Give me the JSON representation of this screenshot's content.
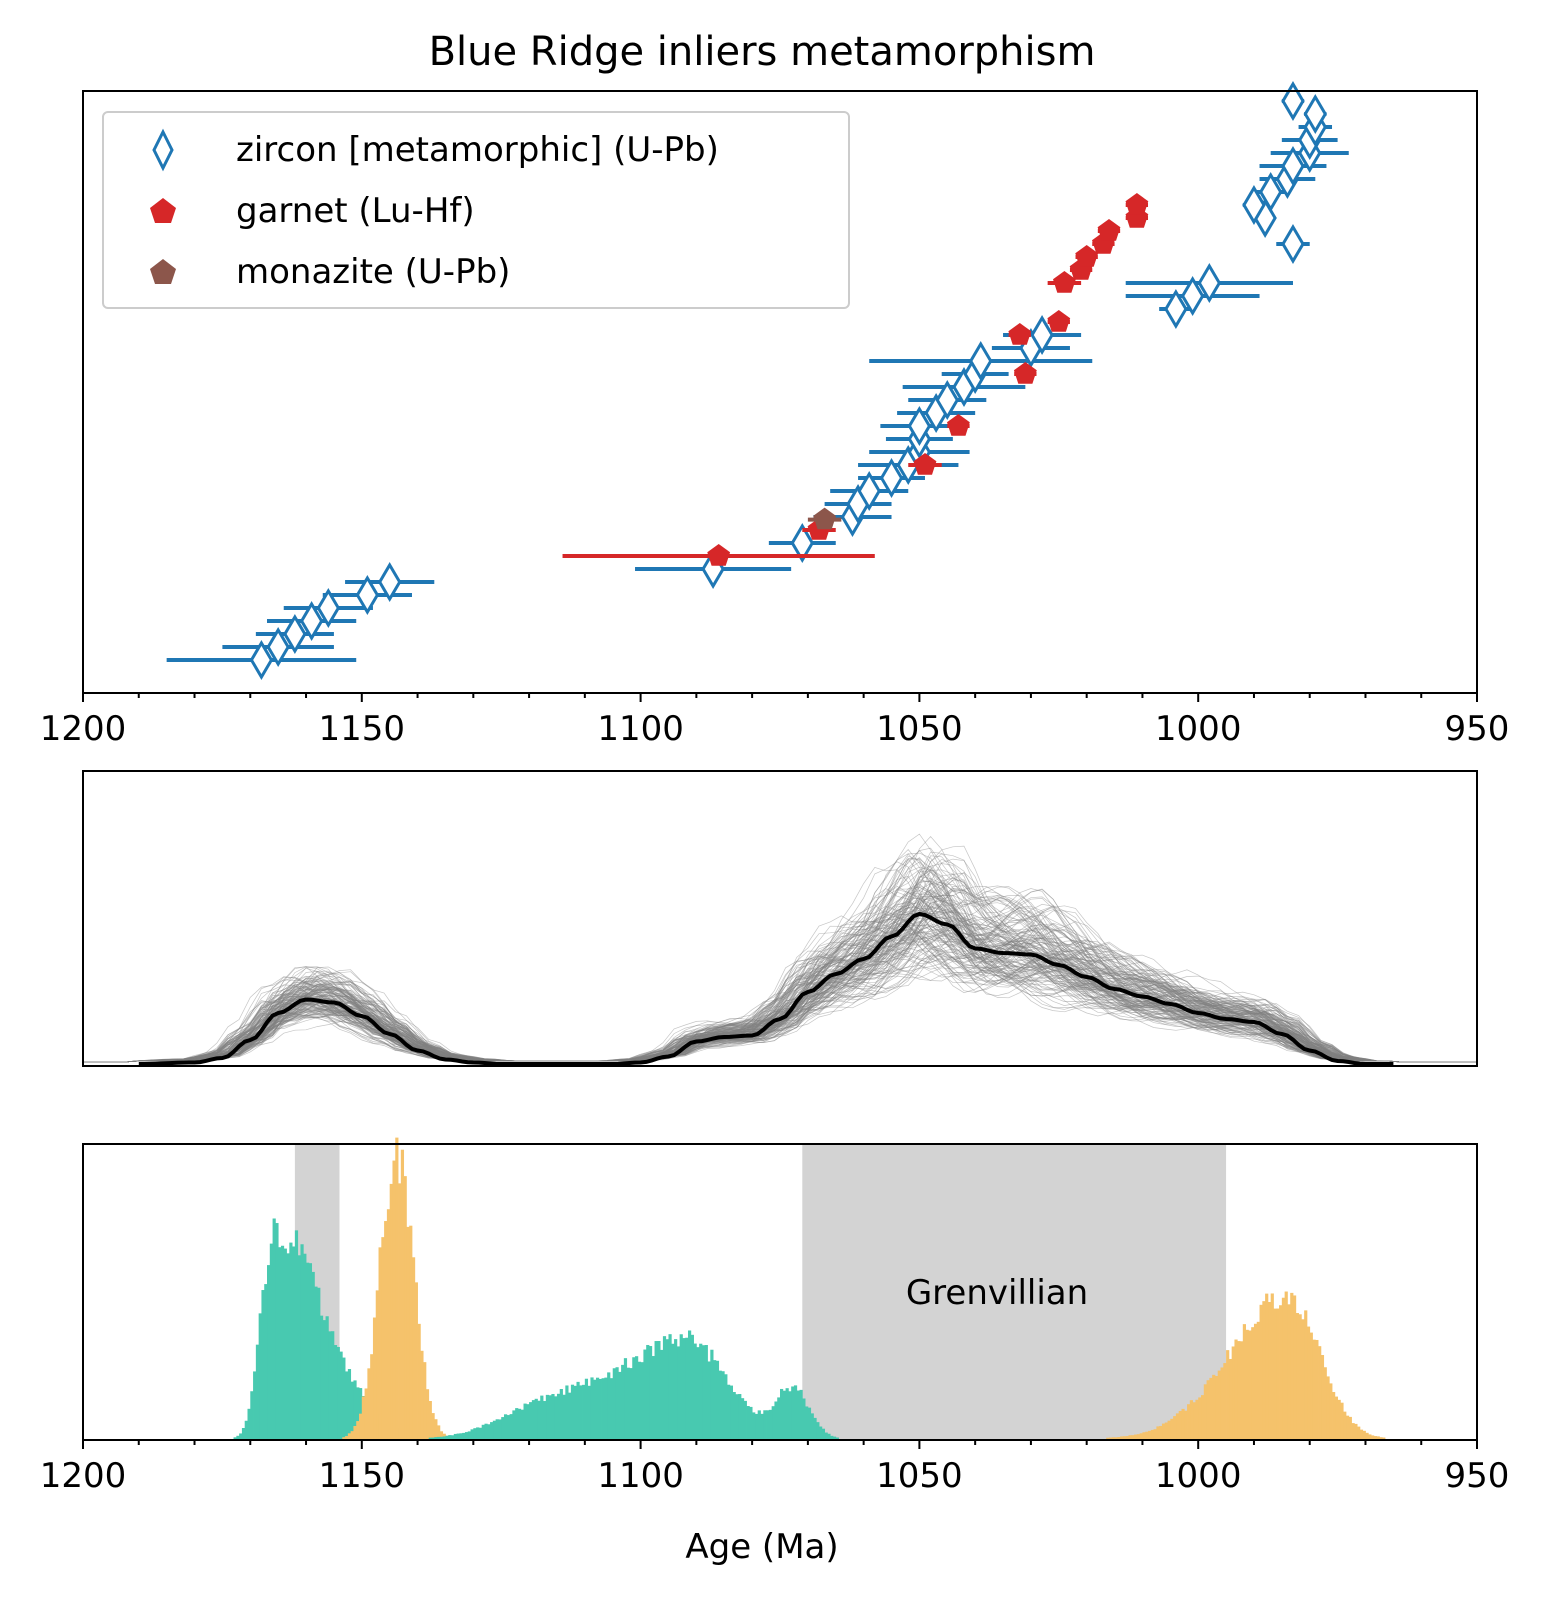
{
  "chart_data": [
    {
      "type": "scatter",
      "title": "Blue Ridge inliers metamorphism",
      "xlim": [
        1200,
        950
      ],
      "xticks": [
        1200,
        1150,
        1100,
        1050,
        1000,
        950
      ],
      "xlabel": "",
      "ylabel": "",
      "legend": {
        "placement": "top-left",
        "entries": [
          {
            "label": "zircon [metamorphic] (U-Pb)",
            "marker": "diamond-open",
            "color": "#1f77b4"
          },
          {
            "label": "garnet (Lu-Hf)",
            "marker": "pentagon",
            "color": "#d62728"
          },
          {
            "label": "monazite (U-Pb)",
            "marker": "pentagon",
            "color": "#8c564b"
          }
        ]
      },
      "series": [
        {
          "name": "zircon [metamorphic] (U-Pb)",
          "color": "#1f77b4",
          "rank": [
            1,
            2,
            3,
            4,
            5,
            6,
            7,
            8,
            10,
            12,
            13,
            14,
            15,
            16,
            17,
            18,
            19,
            20,
            21,
            22,
            23,
            24,
            25,
            26,
            28,
            29,
            30,
            33,
            35,
            36,
            37,
            38,
            39,
            40,
            41,
            42,
            43,
            44
          ],
          "age": [
            1168,
            1165,
            1162,
            1159,
            1156,
            1149,
            1145,
            1087,
            1071,
            1062,
            1061,
            1059,
            1055,
            1052,
            1050,
            1050,
            1050,
            1047,
            1045,
            1042,
            1040,
            1039,
            1030,
            1028,
            1004,
            1001,
            998,
            983,
            988,
            990,
            987,
            984,
            983,
            980,
            980,
            979,
            979,
            983
          ],
          "err": [
            17,
            10,
            7,
            8,
            8,
            8,
            8,
            14,
            6,
            7,
            6,
            7,
            6,
            9,
            9,
            6,
            7,
            7,
            7,
            11,
            6,
            20,
            7,
            7,
            3,
            12,
            15,
            3,
            1,
            2,
            3,
            5,
            6,
            7,
            5,
            3,
            2,
            2
          ]
        },
        {
          "name": "garnet (Lu-Hf)",
          "color": "#d62728",
          "rank": [
            9,
            11,
            16,
            19,
            23,
            26,
            27,
            30,
            31,
            32,
            33,
            34,
            35,
            36
          ],
          "age": [
            1086,
            1068,
            1049,
            1043,
            1031,
            1032,
            1025,
            1024,
            1021,
            1020,
            1017,
            1016,
            1011,
            1011
          ],
          "err": [
            28,
            3,
            3,
            2,
            2,
            2,
            2,
            3,
            2,
            2,
            2,
            2,
            2,
            2
          ]
        },
        {
          "name": "monazite (U-Pb)",
          "color": "#8c564b",
          "rank": [
            11.8
          ],
          "age": [
            1067
          ],
          "err": [
            3
          ]
        }
      ]
    },
    {
      "type": "line",
      "xlim": [
        1200,
        950
      ],
      "description_series": "mean probability density with resampled bootstrap curves",
      "mean_curve": {
        "x": [
          1190,
          1180,
          1175,
          1170,
          1165,
          1160,
          1155,
          1150,
          1145,
          1140,
          1135,
          1130,
          1125,
          1120,
          1115,
          1110,
          1105,
          1100,
          1095,
          1090,
          1085,
          1080,
          1075,
          1070,
          1065,
          1060,
          1055,
          1050,
          1045,
          1040,
          1035,
          1030,
          1025,
          1020,
          1015,
          1010,
          1005,
          1000,
          995,
          990,
          985,
          980,
          975,
          970,
          965
        ],
        "y": [
          0.0,
          0.01,
          0.04,
          0.16,
          0.34,
          0.43,
          0.41,
          0.32,
          0.2,
          0.09,
          0.03,
          0.01,
          0.0,
          0.0,
          0.0,
          0.0,
          0.0,
          0.01,
          0.05,
          0.15,
          0.18,
          0.19,
          0.3,
          0.48,
          0.6,
          0.7,
          0.85,
          1.0,
          0.93,
          0.77,
          0.74,
          0.73,
          0.66,
          0.58,
          0.5,
          0.45,
          0.4,
          0.34,
          0.3,
          0.28,
          0.2,
          0.09,
          0.02,
          0.0,
          0.0
        ]
      }
    },
    {
      "type": "bar",
      "xlabel": "Age (Ma)",
      "xlim": [
        1200,
        950
      ],
      "xticks": [
        1200,
        1150,
        1100,
        1050,
        1000,
        950
      ],
      "shaded_intervals": [
        {
          "from": 1162,
          "to": 1154,
          "label": ""
        },
        {
          "from": 1071,
          "to": 995,
          "label": "Grenvillian"
        }
      ],
      "histograms": [
        {
          "name": "peak1",
          "color": "#48c9b0",
          "mean": 1166,
          "sd": 5,
          "height": 0.71,
          "skew": "left"
        },
        {
          "name": "peak2",
          "color": "#f5c26b",
          "mean": 1144,
          "sd": 3,
          "height": 0.96,
          "skew": "none"
        },
        {
          "name": "peak3",
          "color": "#48c9b0",
          "mean": 1092,
          "sd": 9,
          "height": 0.33,
          "skew": "right"
        },
        {
          "name": "peak4",
          "color": "#f5c26b",
          "mean": 984,
          "sd": 7,
          "height": 0.48,
          "skew": "right"
        }
      ]
    }
  ]
}
